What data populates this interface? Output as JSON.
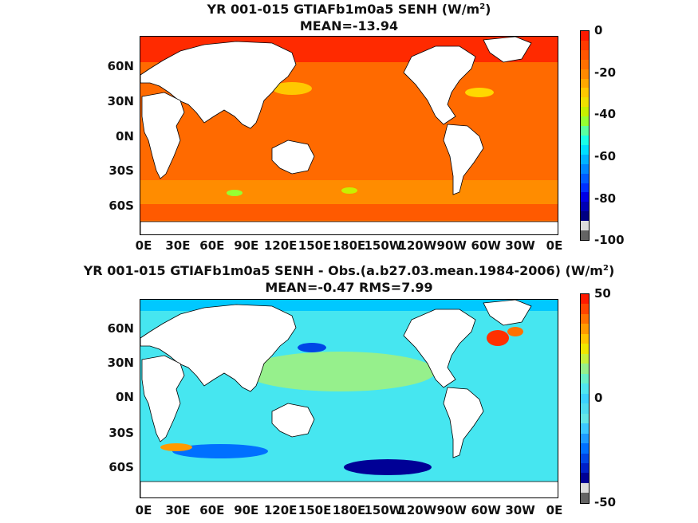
{
  "panels": [
    {
      "title_line1": "YR 001-015 GTIAFb1m0a5  SENH (W/m",
      "title_sup": "2",
      "title_close": ")",
      "title_line2": "MEAN=-13.94",
      "lat_ticks": [
        "60N",
        "30N",
        "0N",
        "30S",
        "60S"
      ],
      "lon_ticks": [
        "0E",
        "30E",
        "60E",
        "90E",
        "120E",
        "150E",
        "180E",
        "150W",
        "120W",
        "90W",
        "60W",
        "30W",
        "0E"
      ],
      "colorbar": {
        "ticks": [
          "0",
          "-20",
          "-40",
          "-60",
          "-80",
          "-100"
        ],
        "colors": [
          "#ff1a00",
          "#ff3a00",
          "#ff5500",
          "#ff7000",
          "#ff8a00",
          "#ffa800",
          "#ffc800",
          "#f0e000",
          "#c8f000",
          "#96ff32",
          "#5affa0",
          "#1affe8",
          "#00e0ff",
          "#00b4ff",
          "#0088ff",
          "#005cff",
          "#0030ff",
          "#0000e6",
          "#0000b4",
          "#000082",
          "#dcdcdc",
          "#646464"
        ]
      }
    },
    {
      "title_line1": "YR 001-015 GTIAFb1m0a5 SENH - Obs.(a.b27.03.mean.1984-2006) (W/m",
      "title_sup": "2",
      "title_close": ")",
      "title_line2": "MEAN=-0.47 RMS=7.99",
      "lat_ticks": [
        "60N",
        "30N",
        "0N",
        "30S",
        "60S"
      ],
      "lon_ticks": [
        "0E",
        "30E",
        "60E",
        "90E",
        "120E",
        "150E",
        "180E",
        "150W",
        "120W",
        "90W",
        "60W",
        "30W",
        "0E"
      ],
      "colorbar": {
        "ticks": [
          "50",
          "0",
          "-50"
        ],
        "colors": [
          "#ff1a00",
          "#ff4400",
          "#ff7000",
          "#ff9a00",
          "#ffc400",
          "#f0e600",
          "#c8f03c",
          "#96f08c",
          "#6af0c8",
          "#50e6f0",
          "#3cd2ff",
          "#50dcf0",
          "#64e6e6",
          "#3cc8ff",
          "#1e9cff",
          "#0070ff",
          "#0046e6",
          "#0020c8",
          "#000096",
          "#dcdcdc",
          "#646464"
        ]
      }
    }
  ],
  "colors": {
    "panel1_ocean": "#ff6a00",
    "panel1_north": "#ff2a00",
    "panel2_ocean": "#46e6f0",
    "panel2_south": "#1e64ff",
    "land": "#ffffff"
  }
}
